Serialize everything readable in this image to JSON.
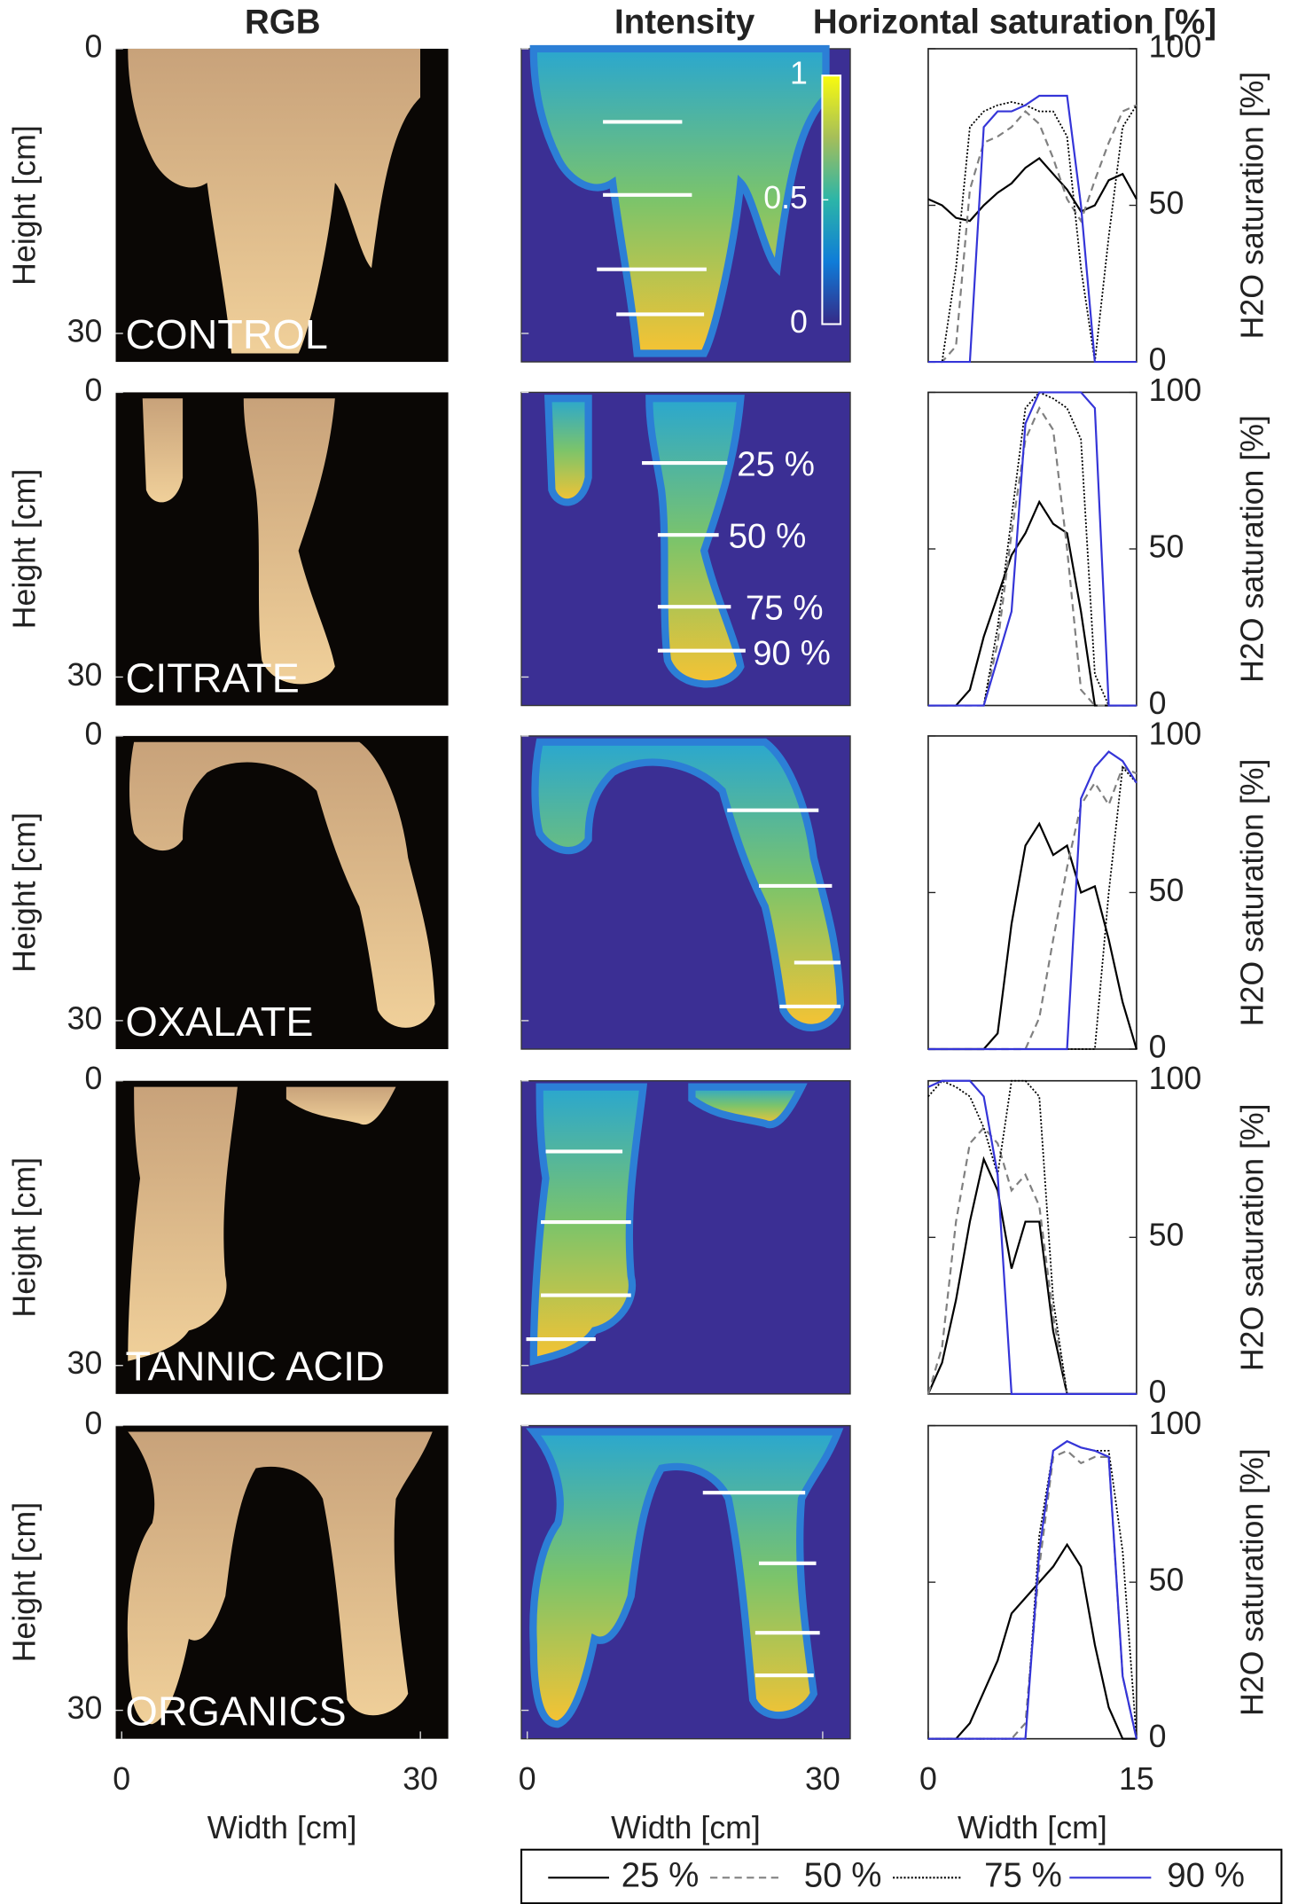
{
  "column_titles": [
    "RGB",
    "Intensity",
    "Horizontal saturation [%]"
  ],
  "image_axes": {
    "ylabel": "Height [cm]",
    "ylim": [
      0,
      33
    ],
    "yticks": [
      0,
      30
    ],
    "xlabel": "Width [cm]",
    "xlim": [
      -0.6,
      32.8
    ],
    "xticks": [
      0,
      30
    ]
  },
  "colorbar": {
    "clim": [
      0,
      1
    ],
    "ticks": [
      1,
      0.5,
      0
    ]
  },
  "level_labels": [
    "25 %",
    "50 %",
    "75 %",
    "90 %"
  ],
  "legend": [
    {
      "name": "25 %",
      "color": "#000000",
      "dash": "solid"
    },
    {
      "name": "50 %",
      "color": "#808080",
      "dash": "dashed"
    },
    {
      "name": "75 %",
      "color": "#000000",
      "dash": "dotted"
    },
    {
      "name": "90 %",
      "color": "#3535d8",
      "dash": "solid"
    }
  ],
  "chart_data": [
    {
      "type": "line",
      "sample": "CONTROL",
      "x": [
        0,
        1,
        2,
        3,
        4,
        5,
        6,
        7,
        8,
        9,
        10,
        11,
        12,
        13,
        14,
        15
      ],
      "xlim": [
        0,
        15
      ],
      "ylim": [
        0,
        100
      ],
      "yticks": [
        0,
        50,
        100
      ],
      "ylabel": "H2O saturation [%]",
      "series": [
        {
          "values": [
            52,
            50,
            46,
            45,
            50,
            54,
            57,
            62,
            65,
            60,
            55,
            48,
            50,
            58,
            60,
            52
          ]
        },
        {
          "values": [
            0,
            0,
            5,
            55,
            70,
            72,
            75,
            80,
            76,
            65,
            52,
            45,
            58,
            70,
            80,
            82
          ]
        },
        {
          "values": [
            0,
            0,
            30,
            75,
            80,
            82,
            83,
            82,
            80,
            80,
            72,
            30,
            0,
            40,
            75,
            82
          ]
        },
        {
          "values": [
            0,
            0,
            0,
            0,
            75,
            80,
            80,
            82,
            85,
            85,
            85,
            50,
            0,
            0,
            0,
            0
          ]
        }
      ]
    },
    {
      "type": "line",
      "sample": "CITRATE",
      "x": [
        0,
        1,
        2,
        3,
        4,
        5,
        6,
        7,
        8,
        9,
        10,
        11,
        12,
        13,
        14,
        15
      ],
      "xlim": [
        0,
        15
      ],
      "ylim": [
        0,
        100
      ],
      "yticks": [
        0,
        50,
        100
      ],
      "ylabel": "H2O saturation [%]",
      "series": [
        {
          "values": [
            0,
            0,
            0,
            5,
            22,
            35,
            48,
            55,
            65,
            58,
            55,
            30,
            0,
            0,
            0,
            0
          ]
        },
        {
          "values": [
            0,
            0,
            0,
            0,
            0,
            20,
            55,
            85,
            95,
            88,
            50,
            5,
            0,
            0,
            0,
            0
          ]
        },
        {
          "values": [
            0,
            0,
            0,
            0,
            0,
            25,
            60,
            95,
            100,
            98,
            95,
            85,
            10,
            0,
            0,
            0
          ]
        },
        {
          "values": [
            0,
            0,
            0,
            0,
            0,
            15,
            30,
            90,
            100,
            100,
            100,
            100,
            95,
            0,
            0,
            0
          ]
        }
      ]
    },
    {
      "type": "line",
      "sample": "OXALATE",
      "x": [
        0,
        1,
        2,
        3,
        4,
        5,
        6,
        7,
        8,
        9,
        10,
        11,
        12,
        13,
        14,
        15
      ],
      "xlim": [
        0,
        15
      ],
      "ylim": [
        0,
        100
      ],
      "yticks": [
        0,
        50,
        100
      ],
      "ylabel": "H2O saturation [%]",
      "series": [
        {
          "values": [
            0,
            0,
            0,
            0,
            0,
            5,
            40,
            65,
            72,
            62,
            65,
            50,
            52,
            35,
            15,
            0
          ]
        },
        {
          "values": [
            0,
            0,
            0,
            0,
            0,
            0,
            0,
            0,
            10,
            35,
            58,
            78,
            85,
            78,
            90,
            88
          ]
        },
        {
          "values": [
            0,
            0,
            0,
            0,
            0,
            0,
            0,
            0,
            0,
            0,
            0,
            0,
            0,
            50,
            90,
            85
          ]
        },
        {
          "values": [
            0,
            0,
            0,
            0,
            0,
            0,
            0,
            0,
            0,
            0,
            0,
            80,
            90,
            95,
            92,
            85
          ]
        }
      ]
    },
    {
      "type": "line",
      "sample": "TANNIC ACID",
      "x": [
        0,
        1,
        2,
        3,
        4,
        5,
        6,
        7,
        8,
        9,
        10,
        11,
        12,
        13,
        14,
        15
      ],
      "xlim": [
        0,
        15
      ],
      "ylim": [
        0,
        100
      ],
      "yticks": [
        0,
        50,
        100
      ],
      "ylabel": "H2O saturation [%]",
      "series": [
        {
          "values": [
            0,
            10,
            30,
            55,
            75,
            65,
            40,
            55,
            55,
            20,
            0,
            0,
            0,
            0,
            0,
            0
          ]
        },
        {
          "values": [
            0,
            15,
            55,
            80,
            85,
            80,
            65,
            70,
            60,
            25,
            0,
            0,
            0,
            0,
            0,
            0
          ]
        },
        {
          "values": [
            95,
            100,
            98,
            95,
            85,
            70,
            100,
            100,
            95,
            30,
            0,
            0,
            0,
            0,
            0,
            0
          ]
        },
        {
          "values": [
            98,
            100,
            100,
            100,
            95,
            70,
            0,
            0,
            0,
            0,
            0,
            0,
            0,
            0,
            0,
            0
          ]
        }
      ]
    },
    {
      "type": "line",
      "sample": "ORGANICS",
      "x": [
        0,
        1,
        2,
        3,
        4,
        5,
        6,
        7,
        8,
        9,
        10,
        11,
        12,
        13,
        14,
        15
      ],
      "xlim": [
        0,
        15
      ],
      "xticks": [
        0,
        15
      ],
      "xlabel": "Width [cm]",
      "ylim": [
        0,
        100
      ],
      "yticks": [
        0,
        50,
        100
      ],
      "ylabel": "H2O saturation [%]",
      "series": [
        {
          "values": [
            0,
            0,
            0,
            5,
            15,
            25,
            40,
            45,
            50,
            55,
            62,
            55,
            30,
            10,
            0,
            0
          ]
        },
        {
          "values": [
            0,
            0,
            0,
            0,
            0,
            0,
            0,
            5,
            55,
            90,
            92,
            88,
            90,
            90,
            20,
            0
          ]
        },
        {
          "values": [
            0,
            0,
            0,
            0,
            0,
            0,
            0,
            0,
            65,
            92,
            95,
            93,
            92,
            92,
            60,
            0
          ]
        },
        {
          "values": [
            0,
            0,
            0,
            0,
            0,
            0,
            0,
            0,
            60,
            92,
            95,
            93,
            92,
            90,
            20,
            0
          ]
        }
      ]
    }
  ]
}
